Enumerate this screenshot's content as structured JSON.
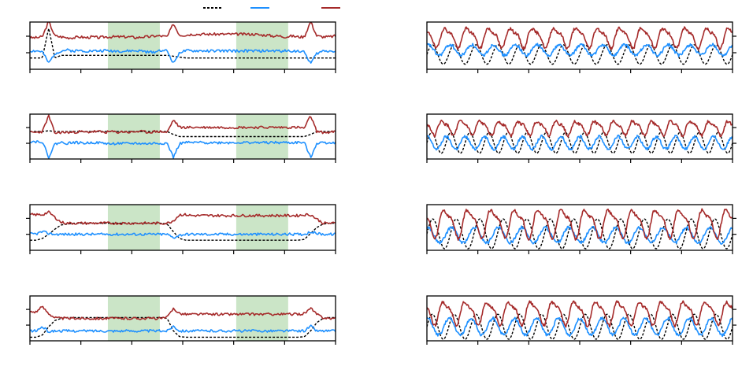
{
  "legend": [
    {
      "name": "",
      "color": "#000000",
      "dash": "3,2"
    },
    {
      "name": "",
      "color": "#1E90FF",
      "dash": ""
    },
    {
      "name": "",
      "color": "#A52A2A",
      "dash": ""
    }
  ],
  "colors": {
    "reference": "#000000",
    "blue": "#1E90FF",
    "red": "#A52A2A",
    "shade": "#B9DCB4"
  },
  "chart_data": [
    {
      "type": "line",
      "row": 0,
      "col": 0,
      "ylim": [
        0,
        1
      ],
      "shaded_regions": [
        [
          0.255,
          0.425
        ],
        [
          0.675,
          0.845
        ]
      ],
      "series": [
        {
          "values": [
            0.22,
            0.22,
            0.22,
            0.9,
            0.22,
            0.28,
            0.28,
            0.28,
            0.28,
            0.28,
            0.28,
            0.28,
            0.28,
            0.28,
            0.28,
            0.28,
            0.28,
            0.28,
            0.28,
            0.28,
            0.28,
            0.28,
            0.28,
            0.26,
            0.24,
            0.22,
            0.22,
            0.22,
            0.22,
            0.22,
            0.22,
            0.22,
            0.22,
            0.22,
            0.22,
            0.22,
            0.22,
            0.22,
            0.22,
            0.22,
            0.22,
            0.22,
            0.22,
            0.22,
            0.22,
            0.22,
            0.22,
            0.22,
            0.22,
            0.22
          ]
        },
        {
          "values": [
            0.38,
            0.38,
            0.36,
            0.1,
            0.32,
            0.38,
            0.4,
            0.38,
            0.39,
            0.38,
            0.38,
            0.38,
            0.39,
            0.38,
            0.38,
            0.37,
            0.38,
            0.38,
            0.38,
            0.35,
            0.36,
            0.4,
            0.38,
            0.1,
            0.35,
            0.38,
            0.38,
            0.38,
            0.38,
            0.38,
            0.38,
            0.38,
            0.38,
            0.38,
            0.38,
            0.38,
            0.38,
            0.38,
            0.38,
            0.38,
            0.38,
            0.38,
            0.38,
            0.38,
            0.35,
            0.1,
            0.32,
            0.38,
            0.38,
            0.38
          ]
        },
        {
          "values": [
            0.68,
            0.68,
            0.7,
            1.05,
            0.72,
            0.7,
            0.68,
            0.68,
            0.7,
            0.68,
            0.7,
            0.68,
            0.7,
            0.7,
            0.7,
            0.7,
            0.7,
            0.68,
            0.7,
            0.7,
            0.72,
            0.72,
            0.7,
            1.0,
            0.74,
            0.74,
            0.76,
            0.76,
            0.76,
            0.76,
            0.76,
            0.76,
            0.76,
            0.76,
            0.76,
            0.76,
            0.76,
            0.74,
            0.74,
            0.72,
            0.72,
            0.7,
            0.72,
            0.7,
            0.7,
            1.05,
            0.72,
            0.7,
            0.7,
            0.72
          ]
        }
      ]
    },
    {
      "type": "line",
      "row": 0,
      "col": 1,
      "ylim": [
        0,
        1
      ],
      "cycles": 14,
      "series": [
        {
          "amp": 0.22,
          "base": 0.3,
          "phase": 0.0
        },
        {
          "amp": 0.12,
          "base": 0.4,
          "phase": 1.2
        },
        {
          "amp": 0.2,
          "base": 0.7,
          "phase": 2.2
        }
      ]
    },
    {
      "type": "line",
      "row": 1,
      "col": 0,
      "ylim": [
        0,
        1
      ],
      "shaded_regions": [
        [
          0.255,
          0.425
        ],
        [
          0.675,
          0.845
        ]
      ],
      "series": [
        {
          "values": [
            0.62,
            0.62,
            0.62,
            0.64,
            0.62,
            0.62,
            0.62,
            0.62,
            0.62,
            0.62,
            0.62,
            0.62,
            0.62,
            0.62,
            0.62,
            0.62,
            0.62,
            0.62,
            0.62,
            0.62,
            0.62,
            0.62,
            0.62,
            0.55,
            0.5,
            0.5,
            0.5,
            0.5,
            0.5,
            0.5,
            0.5,
            0.5,
            0.5,
            0.5,
            0.5,
            0.5,
            0.5,
            0.5,
            0.5,
            0.5,
            0.5,
            0.5,
            0.5,
            0.5,
            0.5,
            0.55,
            0.62,
            0.62,
            0.62,
            0.62
          ]
        },
        {
          "values": [
            0.38,
            0.38,
            0.38,
            0.0,
            0.32,
            0.36,
            0.34,
            0.36,
            0.35,
            0.34,
            0.36,
            0.35,
            0.34,
            0.32,
            0.34,
            0.33,
            0.33,
            0.34,
            0.33,
            0.33,
            0.34,
            0.34,
            0.34,
            0.0,
            0.33,
            0.36,
            0.35,
            0.36,
            0.35,
            0.36,
            0.35,
            0.36,
            0.35,
            0.36,
            0.35,
            0.36,
            0.35,
            0.36,
            0.35,
            0.36,
            0.35,
            0.36,
            0.35,
            0.36,
            0.35,
            0.0,
            0.34,
            0.36,
            0.35,
            0.36
          ]
        },
        {
          "values": [
            0.6,
            0.6,
            0.62,
            1.0,
            0.58,
            0.6,
            0.6,
            0.6,
            0.62,
            0.6,
            0.62,
            0.62,
            0.6,
            0.62,
            0.6,
            0.62,
            0.6,
            0.62,
            0.62,
            0.6,
            0.62,
            0.62,
            0.6,
            0.9,
            0.72,
            0.72,
            0.72,
            0.72,
            0.72,
            0.72,
            0.72,
            0.72,
            0.72,
            0.72,
            0.72,
            0.72,
            0.72,
            0.72,
            0.72,
            0.72,
            0.72,
            0.72,
            0.72,
            0.72,
            0.7,
            1.0,
            0.62,
            0.6,
            0.6,
            0.62
          ]
        }
      ]
    },
    {
      "type": "line",
      "row": 1,
      "col": 1,
      "ylim": [
        0,
        1
      ],
      "cycles": 16,
      "series": [
        {
          "amp": 0.25,
          "base": 0.35,
          "phase": 0.0
        },
        {
          "amp": 0.15,
          "base": 0.35,
          "phase": 1.5
        },
        {
          "amp": 0.15,
          "base": 0.72,
          "phase": 2.5
        }
      ]
    },
    {
      "type": "line",
      "row": 2,
      "col": 0,
      "ylim": [
        0,
        1
      ],
      "shaded_regions": [
        [
          0.255,
          0.425
        ],
        [
          0.675,
          0.845
        ]
      ],
      "series": [
        {
          "values": [
            0.2,
            0.2,
            0.24,
            0.34,
            0.46,
            0.56,
            0.58,
            0.6,
            0.6,
            0.6,
            0.6,
            0.6,
            0.6,
            0.6,
            0.6,
            0.6,
            0.6,
            0.6,
            0.6,
            0.6,
            0.6,
            0.6,
            0.58,
            0.4,
            0.24,
            0.2,
            0.2,
            0.2,
            0.2,
            0.2,
            0.2,
            0.2,
            0.2,
            0.2,
            0.2,
            0.2,
            0.2,
            0.2,
            0.2,
            0.2,
            0.2,
            0.2,
            0.2,
            0.2,
            0.22,
            0.36,
            0.5,
            0.58,
            0.6,
            0.6
          ]
        },
        {
          "values": [
            0.35,
            0.35,
            0.4,
            0.36,
            0.34,
            0.34,
            0.34,
            0.34,
            0.34,
            0.34,
            0.34,
            0.34,
            0.34,
            0.34,
            0.34,
            0.34,
            0.34,
            0.34,
            0.34,
            0.34,
            0.34,
            0.34,
            0.34,
            0.26,
            0.32,
            0.34,
            0.34,
            0.34,
            0.34,
            0.34,
            0.34,
            0.34,
            0.34,
            0.34,
            0.34,
            0.34,
            0.34,
            0.34,
            0.34,
            0.34,
            0.34,
            0.34,
            0.34,
            0.34,
            0.34,
            0.4,
            0.36,
            0.34,
            0.34,
            0.34
          ]
        },
        {
          "values": [
            0.8,
            0.8,
            0.8,
            0.86,
            0.74,
            0.62,
            0.6,
            0.6,
            0.6,
            0.6,
            0.6,
            0.6,
            0.6,
            0.6,
            0.6,
            0.6,
            0.6,
            0.6,
            0.6,
            0.6,
            0.6,
            0.6,
            0.6,
            0.66,
            0.8,
            0.8,
            0.78,
            0.78,
            0.78,
            0.78,
            0.78,
            0.78,
            0.78,
            0.78,
            0.78,
            0.78,
            0.78,
            0.78,
            0.78,
            0.78,
            0.78,
            0.78,
            0.78,
            0.78,
            0.8,
            0.8,
            0.7,
            0.6,
            0.6,
            0.6
          ]
        }
      ]
    },
    {
      "type": "line",
      "row": 2,
      "col": 1,
      "ylim": [
        0,
        1
      ],
      "cycles": 13,
      "series": [
        {
          "amp": 0.35,
          "base": 0.35,
          "phase": 0.0
        },
        {
          "amp": 0.18,
          "base": 0.32,
          "phase": 1.3
        },
        {
          "amp": 0.3,
          "base": 0.62,
          "phase": 2.8
        }
      ]
    },
    {
      "type": "line",
      "row": 3,
      "col": 0,
      "ylim": [
        0,
        1
      ],
      "shaded_regions": [
        [
          0.255,
          0.425
        ],
        [
          0.675,
          0.845
        ]
      ],
      "series": [
        {
          "values": [
            0.05,
            0.05,
            0.1,
            0.3,
            0.45,
            0.5,
            0.52,
            0.52,
            0.52,
            0.52,
            0.52,
            0.52,
            0.52,
            0.52,
            0.52,
            0.52,
            0.52,
            0.52,
            0.52,
            0.52,
            0.52,
            0.52,
            0.5,
            0.2,
            0.06,
            0.05,
            0.05,
            0.05,
            0.05,
            0.05,
            0.05,
            0.05,
            0.05,
            0.05,
            0.05,
            0.05,
            0.05,
            0.05,
            0.05,
            0.05,
            0.05,
            0.05,
            0.05,
            0.05,
            0.06,
            0.2,
            0.4,
            0.5,
            0.52,
            0.52
          ]
        },
        {
          "values": [
            0.2,
            0.2,
            0.3,
            0.18,
            0.2,
            0.2,
            0.2,
            0.2,
            0.2,
            0.2,
            0.2,
            0.2,
            0.2,
            0.2,
            0.2,
            0.2,
            0.2,
            0.2,
            0.2,
            0.2,
            0.2,
            0.2,
            0.2,
            0.32,
            0.2,
            0.2,
            0.2,
            0.2,
            0.2,
            0.2,
            0.2,
            0.2,
            0.2,
            0.2,
            0.2,
            0.2,
            0.2,
            0.2,
            0.2,
            0.2,
            0.2,
            0.2,
            0.2,
            0.2,
            0.2,
            0.32,
            0.2,
            0.2,
            0.2,
            0.2
          ]
        },
        {
          "values": [
            0.66,
            0.66,
            0.78,
            0.62,
            0.52,
            0.5,
            0.5,
            0.5,
            0.5,
            0.5,
            0.5,
            0.5,
            0.5,
            0.5,
            0.5,
            0.5,
            0.5,
            0.5,
            0.5,
            0.5,
            0.5,
            0.5,
            0.52,
            0.74,
            0.62,
            0.6,
            0.6,
            0.6,
            0.6,
            0.6,
            0.6,
            0.6,
            0.6,
            0.6,
            0.6,
            0.6,
            0.6,
            0.6,
            0.6,
            0.6,
            0.6,
            0.6,
            0.6,
            0.6,
            0.62,
            0.74,
            0.6,
            0.52,
            0.5,
            0.5
          ]
        }
      ]
    },
    {
      "type": "line",
      "row": 3,
      "col": 1,
      "ylim": [
        0,
        1
      ],
      "cycles": 14,
      "series": [
        {
          "amp": 0.3,
          "base": 0.3,
          "phase": 0.0
        },
        {
          "amp": 0.2,
          "base": 0.3,
          "phase": 1.4
        },
        {
          "amp": 0.25,
          "base": 0.65,
          "phase": 2.7
        }
      ]
    }
  ]
}
